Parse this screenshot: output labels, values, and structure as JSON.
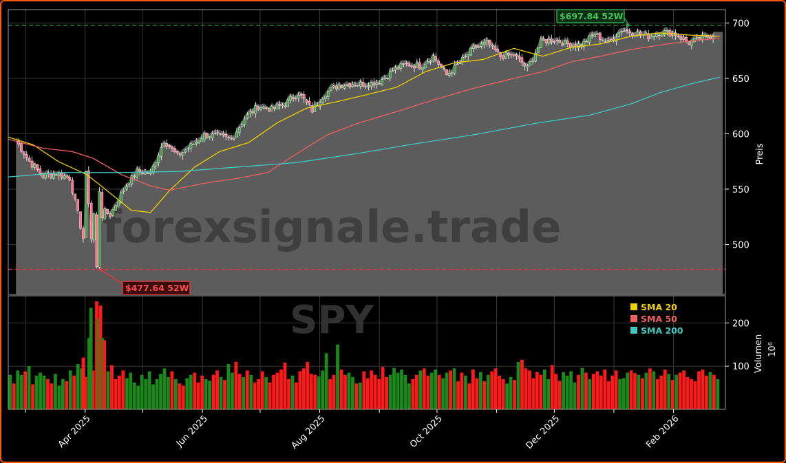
{
  "chart_data": {
    "type": "candlestick",
    "watermark": "forexsignale.trade",
    "ticker_watermark": "SPY",
    "price_panel": {
      "ylabel": "Preis",
      "ylim": [
        455,
        712
      ],
      "yticks": [
        500,
        550,
        600,
        650,
        700
      ],
      "high_52w": {
        "value": 697.84,
        "label": "$697.84 52W",
        "color": "#2ea84a"
      },
      "low_52w": {
        "value": 477.64,
        "label": "$477.64 52W",
        "color": "#e0393e"
      },
      "price_series": {
        "name": "SPY",
        "up_color": "#3ca03c",
        "down_color": "#ff6b8a",
        "weekly_close": [
          [
            "2025-02-24",
            594
          ],
          [
            "2025-03-03",
            575
          ],
          [
            "2025-03-10",
            562
          ],
          [
            "2025-03-17",
            564
          ],
          [
            "2025-03-24",
            560
          ],
          [
            "2025-03-31",
            506
          ],
          [
            "2025-04-07",
            533
          ],
          [
            "2025-04-14",
            527
          ],
          [
            "2025-04-21",
            550
          ],
          [
            "2025-04-28",
            566
          ],
          [
            "2025-05-05",
            564
          ],
          [
            "2025-05-12",
            594
          ],
          [
            "2025-05-19",
            580
          ],
          [
            "2025-05-26",
            589
          ],
          [
            "2025-06-02",
            599
          ],
          [
            "2025-06-09",
            598
          ],
          [
            "2025-06-16",
            595
          ],
          [
            "2025-06-23",
            614
          ],
          [
            "2025-06-30",
            625
          ],
          [
            "2025-07-07",
            622
          ],
          [
            "2025-07-14",
            627
          ],
          [
            "2025-07-21",
            637
          ],
          [
            "2025-07-28",
            621
          ],
          [
            "2025-08-04",
            637
          ],
          [
            "2025-08-11",
            644
          ],
          [
            "2025-08-18",
            645
          ],
          [
            "2025-08-25",
            645
          ],
          [
            "2025-09-01",
            647
          ],
          [
            "2025-09-08",
            657
          ],
          [
            "2025-09-15",
            663
          ],
          [
            "2025-09-22",
            661
          ],
          [
            "2025-09-29",
            670
          ],
          [
            "2025-10-06",
            653
          ],
          [
            "2025-10-13",
            664
          ],
          [
            "2025-10-20",
            677
          ],
          [
            "2025-10-27",
            682
          ],
          [
            "2025-11-03",
            670
          ],
          [
            "2025-11-10",
            671
          ],
          [
            "2025-11-17",
            659
          ],
          [
            "2025-11-24",
            683
          ],
          [
            "2025-12-01",
            685
          ],
          [
            "2025-12-08",
            681
          ],
          [
            "2025-12-15",
            680
          ],
          [
            "2025-12-22",
            690
          ],
          [
            "2025-12-29",
            682
          ],
          [
            "2026-01-05",
            694
          ],
          [
            "2026-01-12",
            691
          ],
          [
            "2026-01-19",
            688
          ],
          [
            "2026-01-26",
            692
          ],
          [
            "2026-02-02",
            690
          ],
          [
            "2026-02-09",
            682
          ],
          [
            "2026-02-16",
            686
          ],
          [
            "2026-02-23",
            690
          ]
        ]
      },
      "sma": [
        {
          "name": "SMA 20",
          "color": "#f0d000",
          "points": [
            [
              "2025-02-20",
              597
            ],
            [
              "2025-03-05",
              590
            ],
            [
              "2025-03-18",
              575
            ],
            [
              "2025-04-02",
              563
            ],
            [
              "2025-04-15",
              545
            ],
            [
              "2025-04-25",
              531
            ],
            [
              "2025-05-05",
              529
            ],
            [
              "2025-05-15",
              549
            ],
            [
              "2025-05-28",
              570
            ],
            [
              "2025-06-10",
              584
            ],
            [
              "2025-06-25",
              592
            ],
            [
              "2025-07-10",
              610
            ],
            [
              "2025-07-25",
              623
            ],
            [
              "2025-08-10",
              629
            ],
            [
              "2025-08-25",
              635
            ],
            [
              "2025-09-10",
              642
            ],
            [
              "2025-09-25",
              656
            ],
            [
              "2025-10-10",
              664
            ],
            [
              "2025-10-25",
              667
            ],
            [
              "2025-11-10",
              677
            ],
            [
              "2025-11-25",
              670
            ],
            [
              "2025-12-10",
              678
            ],
            [
              "2025-12-25",
              681
            ],
            [
              "2026-01-10",
              688
            ],
            [
              "2026-01-25",
              691
            ],
            [
              "2026-02-10",
              689
            ],
            [
              "2026-02-25",
              688
            ]
          ]
        },
        {
          "name": "SMA 50",
          "color": "#f06060",
          "points": [
            [
              "2025-02-20",
              595
            ],
            [
              "2025-03-10",
              587
            ],
            [
              "2025-03-25",
              584
            ],
            [
              "2025-04-05",
              578
            ],
            [
              "2025-04-20",
              563
            ],
            [
              "2025-05-05",
              553
            ],
            [
              "2025-05-15",
              549
            ],
            [
              "2025-06-01",
              555
            ],
            [
              "2025-06-20",
              560
            ],
            [
              "2025-07-05",
              565
            ],
            [
              "2025-07-20",
              582
            ],
            [
              "2025-08-05",
              599
            ],
            [
              "2025-08-20",
              609
            ],
            [
              "2025-09-10",
              620
            ],
            [
              "2025-09-30",
              631
            ],
            [
              "2025-10-20",
              641
            ],
            [
              "2025-11-10",
              650
            ],
            [
              "2025-11-25",
              656
            ],
            [
              "2025-12-10",
              665
            ],
            [
              "2025-12-25",
              670
            ],
            [
              "2026-01-10",
              676
            ],
            [
              "2026-01-25",
              680
            ],
            [
              "2026-02-10",
              684
            ],
            [
              "2026-02-25",
              686
            ]
          ]
        },
        {
          "name": "SMA 200",
          "color": "#40c8c0",
          "points": [
            [
              "2025-02-20",
              561
            ],
            [
              "2025-03-20",
              565
            ],
            [
              "2025-04-20",
              565
            ],
            [
              "2025-05-20",
              566
            ],
            [
              "2025-06-20",
              570
            ],
            [
              "2025-07-20",
              574
            ],
            [
              "2025-08-20",
              582
            ],
            [
              "2025-09-20",
              591
            ],
            [
              "2025-10-20",
              599
            ],
            [
              "2025-11-20",
              609
            ],
            [
              "2025-12-20",
              617
            ],
            [
              "2026-01-10",
              627
            ],
            [
              "2026-01-25",
              637
            ],
            [
              "2026-02-10",
              645
            ],
            [
              "2026-02-25",
              651
            ]
          ]
        }
      ]
    },
    "volume_panel": {
      "ylabel": "Volumen",
      "unit": "10⁶",
      "ylim": [
        0,
        250
      ],
      "yticks": [
        100,
        200
      ],
      "up_color": "#1a8a1a",
      "down_color": "#ff1a1a",
      "bars": [
        80,
        60,
        90,
        80,
        88,
        100,
        58,
        78,
        85,
        78,
        70,
        60,
        82,
        55,
        70,
        65,
        90,
        78,
        105,
        95,
        75,
        60,
        90,
        62,
        115,
        80,
        88,
        102,
        70,
        78,
        90,
        72,
        85,
        62,
        55,
        80,
        70,
        88,
        58,
        70,
        82,
        95,
        75,
        88,
        70,
        60,
        55,
        72,
        80,
        85,
        62,
        78,
        70,
        66,
        80,
        90,
        75,
        68,
        105,
        85,
        110,
        82,
        75,
        90,
        80,
        62,
        70,
        88,
        75,
        62,
        80,
        85,
        92,
        108,
        70,
        78,
        62,
        88,
        95,
        110,
        82,
        80,
        76,
        90,
        130,
        70,
        80,
        150,
        92,
        80,
        85,
        75,
        60,
        62,
        88,
        72,
        90,
        80,
        70,
        98,
        75,
        80,
        96,
        85,
        92,
        80,
        60,
        70,
        80,
        90,
        95,
        78,
        85,
        92,
        80,
        72,
        85,
        90,
        95,
        65,
        85,
        78,
        60,
        92,
        72,
        86,
        65,
        80,
        88,
        95,
        78,
        70,
        60,
        75,
        68,
        110,
        115,
        95,
        90,
        72,
        86,
        80,
        92,
        70,
        102,
        82,
        66,
        86,
        78,
        88,
        62,
        80,
        96,
        85,
        70,
        82,
        88,
        78,
        92,
        65,
        78,
        90,
        70,
        72,
        85,
        90,
        84,
        80,
        72,
        85,
        95,
        88,
        70,
        78,
        92,
        82,
        68,
        80,
        85,
        90,
        75,
        70,
        65,
        88,
        92,
        78,
        86,
        80,
        70
      ],
      "spikes": [
        [
          "2025-04-04",
          235
        ],
        [
          "2025-04-07",
          250
        ],
        [
          "2025-04-08",
          210
        ],
        [
          "2025-04-09",
          240
        ],
        [
          "2025-04-10",
          165
        ],
        [
          "2025-04-11",
          160
        ],
        [
          "2025-04-03",
          165
        ],
        [
          "2025-03-31",
          120
        ]
      ]
    },
    "x_axis": {
      "start": "2025-02-20",
      "end": "2026-02-28",
      "ticks": [
        {
          "date": "2025-03-01",
          "label": ""
        },
        {
          "date": "2025-04-01",
          "label": "Apr 2025"
        },
        {
          "date": "2025-05-01",
          "label": ""
        },
        {
          "date": "2025-06-01",
          "label": "Jun 2025"
        },
        {
          "date": "2025-07-01",
          "label": ""
        },
        {
          "date": "2025-08-01",
          "label": "Aug 2025"
        },
        {
          "date": "2025-09-01",
          "label": ""
        },
        {
          "date": "2025-10-01",
          "label": "Oct 2025"
        },
        {
          "date": "2025-11-01",
          "label": ""
        },
        {
          "date": "2025-12-01",
          "label": "Dec 2025"
        },
        {
          "date": "2026-01-01",
          "label": ""
        },
        {
          "date": "2026-02-01",
          "label": "Feb 2026"
        }
      ]
    },
    "legend": {
      "placement": "top-right of volume panel",
      "items": [
        {
          "label": "SMA 20",
          "color": "#f0d000"
        },
        {
          "label": "SMA 50",
          "color": "#f06060"
        },
        {
          "label": "SMA 200",
          "color": "#40c8c0"
        }
      ]
    },
    "grid": true
  }
}
